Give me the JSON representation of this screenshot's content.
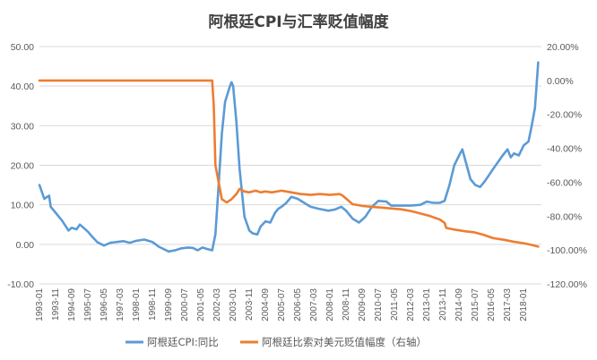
{
  "chart_data": {
    "type": "line",
    "title": "阿根廷CPI与汇率贬值幅度",
    "left_axis": {
      "ticks": [
        -10,
        0,
        10,
        20,
        30,
        40,
        50
      ],
      "tick_labels": [
        "-10.00",
        "0.00",
        "10.00",
        "20.00",
        "30.00",
        "40.00",
        "50.00"
      ],
      "range": [
        -10,
        50
      ]
    },
    "right_axis": {
      "ticks": [
        -120,
        -100,
        -80,
        -60,
        -40,
        -20,
        0,
        20
      ],
      "tick_labels": [
        "-120.00%",
        "-100.00%",
        "-80.00%",
        "-60.00%",
        "-40.00%",
        "-20.00%",
        "0.00%",
        "20.00%"
      ],
      "range": [
        -120,
        20
      ]
    },
    "x_axis": {
      "start": "1993-01",
      "end": "2018-12",
      "tick_labels": [
        "1993-01",
        "1993-11",
        "1994-09",
        "1995-07",
        "1996-05",
        "1997-03",
        "1998-01",
        "1998-11",
        "1999-09",
        "2000-07",
        "2001-05",
        "2002-03",
        "2003-01",
        "2003-11",
        "2004-09",
        "2005-07",
        "2006-05",
        "2007-03",
        "2008-01",
        "2008-11",
        "2009-09",
        "2010-07",
        "2011-05",
        "2012-03",
        "2013-01",
        "2013-11",
        "2014-09",
        "2015-07",
        "2016-05",
        "2017-03",
        "2018-01"
      ]
    },
    "series": [
      {
        "name": "阿根廷CPI:同比",
        "axis": "left",
        "color": "#5b9bd5",
        "points": [
          [
            "1993-01",
            15.0
          ],
          [
            "1993-04",
            11.5
          ],
          [
            "1993-07",
            12.3
          ],
          [
            "1993-08",
            9.5
          ],
          [
            "1993-11",
            8.0
          ],
          [
            "1994-03",
            6.0
          ],
          [
            "1994-07",
            3.5
          ],
          [
            "1994-09",
            4.2
          ],
          [
            "1994-12",
            3.8
          ],
          [
            "1995-02",
            5.0
          ],
          [
            "1995-04",
            4.3
          ],
          [
            "1995-07",
            3.2
          ],
          [
            "1995-10",
            1.8
          ],
          [
            "1996-01",
            0.5
          ],
          [
            "1996-05",
            -0.3
          ],
          [
            "1996-09",
            0.4
          ],
          [
            "1997-01",
            0.6
          ],
          [
            "1997-05",
            0.8
          ],
          [
            "1997-09",
            0.4
          ],
          [
            "1998-01",
            0.9
          ],
          [
            "1998-06",
            1.2
          ],
          [
            "1998-11",
            0.6
          ],
          [
            "1999-03",
            -0.6
          ],
          [
            "1999-09",
            -1.8
          ],
          [
            "2000-01",
            -1.5
          ],
          [
            "2000-05",
            -1.0
          ],
          [
            "2000-09",
            -0.8
          ],
          [
            "2000-12",
            -0.9
          ],
          [
            "2001-03",
            -1.5
          ],
          [
            "2001-06",
            -0.8
          ],
          [
            "2001-09",
            -1.2
          ],
          [
            "2001-12",
            -1.5
          ],
          [
            "2002-02",
            2.5
          ],
          [
            "2002-04",
            15.0
          ],
          [
            "2002-06",
            28.0
          ],
          [
            "2002-08",
            36.0
          ],
          [
            "2002-11",
            40.0
          ],
          [
            "2002-12",
            41.0
          ],
          [
            "2003-01",
            40.0
          ],
          [
            "2003-03",
            31.0
          ],
          [
            "2003-05",
            19.0
          ],
          [
            "2003-08",
            7.0
          ],
          [
            "2003-11",
            3.5
          ],
          [
            "2004-01",
            2.8
          ],
          [
            "2004-04",
            2.5
          ],
          [
            "2004-06",
            4.5
          ],
          [
            "2004-09",
            5.8
          ],
          [
            "2004-12",
            5.5
          ],
          [
            "2005-03",
            8.0
          ],
          [
            "2005-05",
            9.0
          ],
          [
            "2005-07",
            9.5
          ],
          [
            "2005-10",
            10.5
          ],
          [
            "2006-01",
            12.0
          ],
          [
            "2006-05",
            11.5
          ],
          [
            "2006-09",
            10.5
          ],
          [
            "2007-01",
            9.5
          ],
          [
            "2007-06",
            9.0
          ],
          [
            "2007-12",
            8.5
          ],
          [
            "2008-04",
            8.8
          ],
          [
            "2008-08",
            9.5
          ],
          [
            "2008-11",
            8.5
          ],
          [
            "2009-03",
            6.5
          ],
          [
            "2009-07",
            5.5
          ],
          [
            "2009-11",
            7.0
          ],
          [
            "2010-03",
            9.5
          ],
          [
            "2010-07",
            11.0
          ],
          [
            "2010-12",
            10.8
          ],
          [
            "2011-03",
            9.8
          ],
          [
            "2011-09",
            9.8
          ],
          [
            "2012-03",
            9.8
          ],
          [
            "2012-09",
            10.0
          ],
          [
            "2013-01",
            10.8
          ],
          [
            "2013-05",
            10.5
          ],
          [
            "2013-09",
            10.5
          ],
          [
            "2013-12",
            11.0
          ],
          [
            "2014-03",
            15.0
          ],
          [
            "2014-06",
            20.0
          ],
          [
            "2014-09",
            22.5
          ],
          [
            "2014-11",
            24.0
          ],
          [
            "2015-01",
            21.0
          ],
          [
            "2015-04",
            16.5
          ],
          [
            "2015-07",
            15.0
          ],
          [
            "2015-10",
            14.5
          ],
          [
            "2016-01",
            16.0
          ],
          [
            "2016-06",
            19.0
          ],
          [
            "2016-12",
            22.5
          ],
          [
            "2017-03",
            24.0
          ],
          [
            "2017-05",
            22.0
          ],
          [
            "2017-07",
            23.0
          ],
          [
            "2017-10",
            22.5
          ],
          [
            "2018-01",
            25.0
          ],
          [
            "2018-04",
            26.0
          ],
          [
            "2018-06",
            30.0
          ],
          [
            "2018-08",
            34.5
          ],
          [
            "2018-10",
            46.0
          ]
        ]
      },
      {
        "name": "阿根廷比索对美元贬值幅度（右轴）",
        "axis": "right",
        "color": "#ed7d31",
        "points": [
          [
            "1993-01",
            0.0
          ],
          [
            "2001-12",
            0.0
          ],
          [
            "2002-01",
            -15.0
          ],
          [
            "2002-02",
            -50.0
          ],
          [
            "2002-04",
            -60.0
          ],
          [
            "2002-06",
            -70.0
          ],
          [
            "2002-09",
            -72.0
          ],
          [
            "2002-12",
            -70.0
          ],
          [
            "2003-03",
            -67.0
          ],
          [
            "2003-05",
            -64.0
          ],
          [
            "2003-08",
            -65.5
          ],
          [
            "2003-11",
            -66.0
          ],
          [
            "2004-03",
            -65.0
          ],
          [
            "2004-06",
            -66.0
          ],
          [
            "2004-09",
            -65.5
          ],
          [
            "2005-01",
            -66.0
          ],
          [
            "2005-07",
            -65.0
          ],
          [
            "2006-01",
            -66.0
          ],
          [
            "2006-07",
            -67.0
          ],
          [
            "2007-01",
            -67.5
          ],
          [
            "2007-07",
            -67.0
          ],
          [
            "2008-01",
            -67.5
          ],
          [
            "2008-07",
            -67.0
          ],
          [
            "2008-09",
            -68.0
          ],
          [
            "2009-03",
            -73.0
          ],
          [
            "2009-09",
            -74.0
          ],
          [
            "2010-03",
            -74.5
          ],
          [
            "2010-09",
            -75.0
          ],
          [
            "2011-03",
            -75.5
          ],
          [
            "2011-09",
            -76.0
          ],
          [
            "2012-03",
            -77.0
          ],
          [
            "2012-09",
            -78.5
          ],
          [
            "2013-03",
            -80.0
          ],
          [
            "2013-09",
            -82.0
          ],
          [
            "2013-12",
            -84.0
          ],
          [
            "2014-01",
            -87.0
          ],
          [
            "2014-06",
            -88.0
          ],
          [
            "2015-01",
            -89.0
          ],
          [
            "2015-06",
            -89.5
          ],
          [
            "2015-12",
            -91.0
          ],
          [
            "2016-06",
            -93.0
          ],
          [
            "2017-01",
            -94.0
          ],
          [
            "2017-06",
            -95.0
          ],
          [
            "2018-01",
            -96.0
          ],
          [
            "2018-06",
            -97.0
          ],
          [
            "2018-10",
            -98.0
          ]
        ]
      }
    ],
    "grid": true,
    "legend_position": "bottom"
  }
}
